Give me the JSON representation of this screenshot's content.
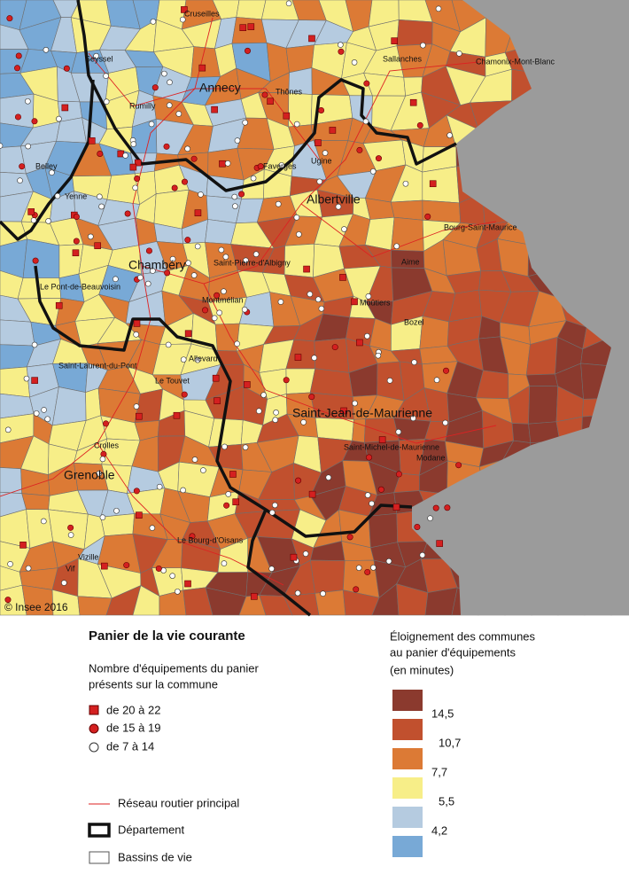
{
  "map": {
    "copyright": "© Insee 2016",
    "places": [
      "Cruseilles",
      "Seyssel",
      "Sallanches",
      "Chamonix-Mont-Blanc",
      "Annecy",
      "Thônes",
      "Rumilly",
      "Belley",
      "Faverges",
      "Ugine",
      "Albertville",
      "Yenne",
      "Bourg-Saint-Maurice",
      "Aime",
      "Saint-Pierre-d'Albigny",
      "Chambéry",
      "Le Pont-de-Beauvoisin",
      "Montmélian",
      "Moûtiers",
      "Bozel",
      "Allevard",
      "Saint-Laurent-du-Pont",
      "Le Touvet",
      "Saint-Jean-de-Maurienne",
      "Saint-Michel-de-Maurienne",
      "Modane",
      "Grenoble",
      "Crolles",
      "Vizille",
      "Le Bourg-d'Oisans",
      "Vif"
    ]
  },
  "legend": {
    "title": "Panier de la vie courante",
    "subtitle": [
      "Nombre d'équipements du panier",
      "présents sur la commune"
    ],
    "symbols": [
      "de 20 à 22",
      "de 15 à 19",
      "de 7 à 14"
    ],
    "lines": [
      "Réseau routier principal",
      "Département",
      "Bassins de vie"
    ]
  },
  "scale": {
    "title": [
      "Éloignement des communes",
      "au panier d'équipements",
      "(en minutes)"
    ],
    "colors": [
      "#8b3a2e",
      "#c1502e",
      "#dc7a35",
      "#f7ee88",
      "#b5cbe0",
      "#78a9d6"
    ],
    "breaks": [
      "14,5",
      "10,7",
      "7,7",
      "5,5",
      "4,2"
    ]
  }
}
